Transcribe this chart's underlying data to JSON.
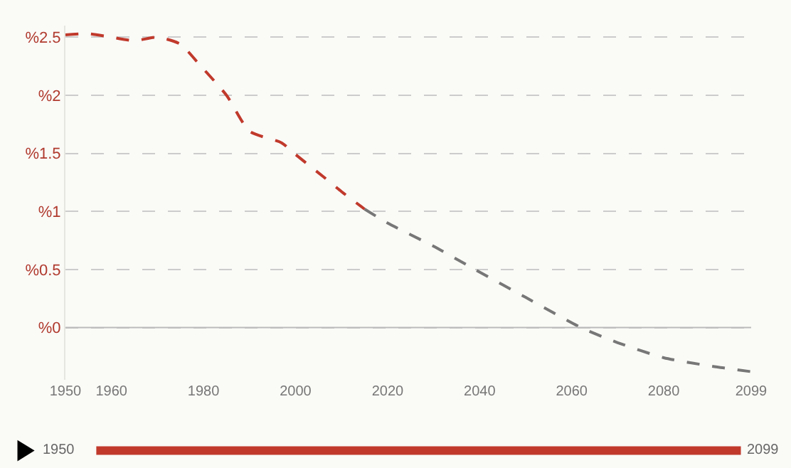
{
  "chart_data": {
    "type": "line",
    "xlim": [
      1950,
      2099
    ],
    "xticks": [
      1950,
      1960,
      1980,
      2000,
      2020,
      2040,
      2060,
      2080,
      2099
    ],
    "ylim": [
      -0.45,
      2.6
    ],
    "yticks": [
      {
        "value": 0,
        "label": "%0"
      },
      {
        "value": 0.5,
        "label": "%0.5"
      },
      {
        "value": 1,
        "label": "%1"
      },
      {
        "value": 1.5,
        "label": "%1.5"
      },
      {
        "value": 2,
        "label": "%2"
      },
      {
        "value": 2.5,
        "label": "%2.5"
      }
    ],
    "grid": "y",
    "line_style": "dashed",
    "marker": "none",
    "series": [
      {
        "color": "#c0392b",
        "x": [
          1950,
          1955,
          1960,
          1965,
          1970,
          1975,
          1979,
          1985,
          1990,
          1997,
          2000,
          2006,
          2010,
          2015
        ],
        "values": [
          2.52,
          2.53,
          2.5,
          2.47,
          2.5,
          2.44,
          2.27,
          2.0,
          1.69,
          1.59,
          1.49,
          1.3,
          1.17,
          1.02
        ]
      },
      {
        "color": "#777777",
        "x": [
          2015,
          2020,
          2030,
          2039,
          2050,
          2062,
          2070,
          2080,
          2090,
          2099
        ],
        "values": [
          1.02,
          0.9,
          0.7,
          0.5,
          0.26,
          0.0,
          -0.13,
          -0.26,
          -0.33,
          -0.38
        ]
      }
    ],
    "ref_lines": [
      {
        "axis": "y",
        "value": 0,
        "color": "#bbbbbb",
        "line_style": "solid"
      }
    ],
    "annotations": [
      "1950",
      "2099"
    ]
  }
}
